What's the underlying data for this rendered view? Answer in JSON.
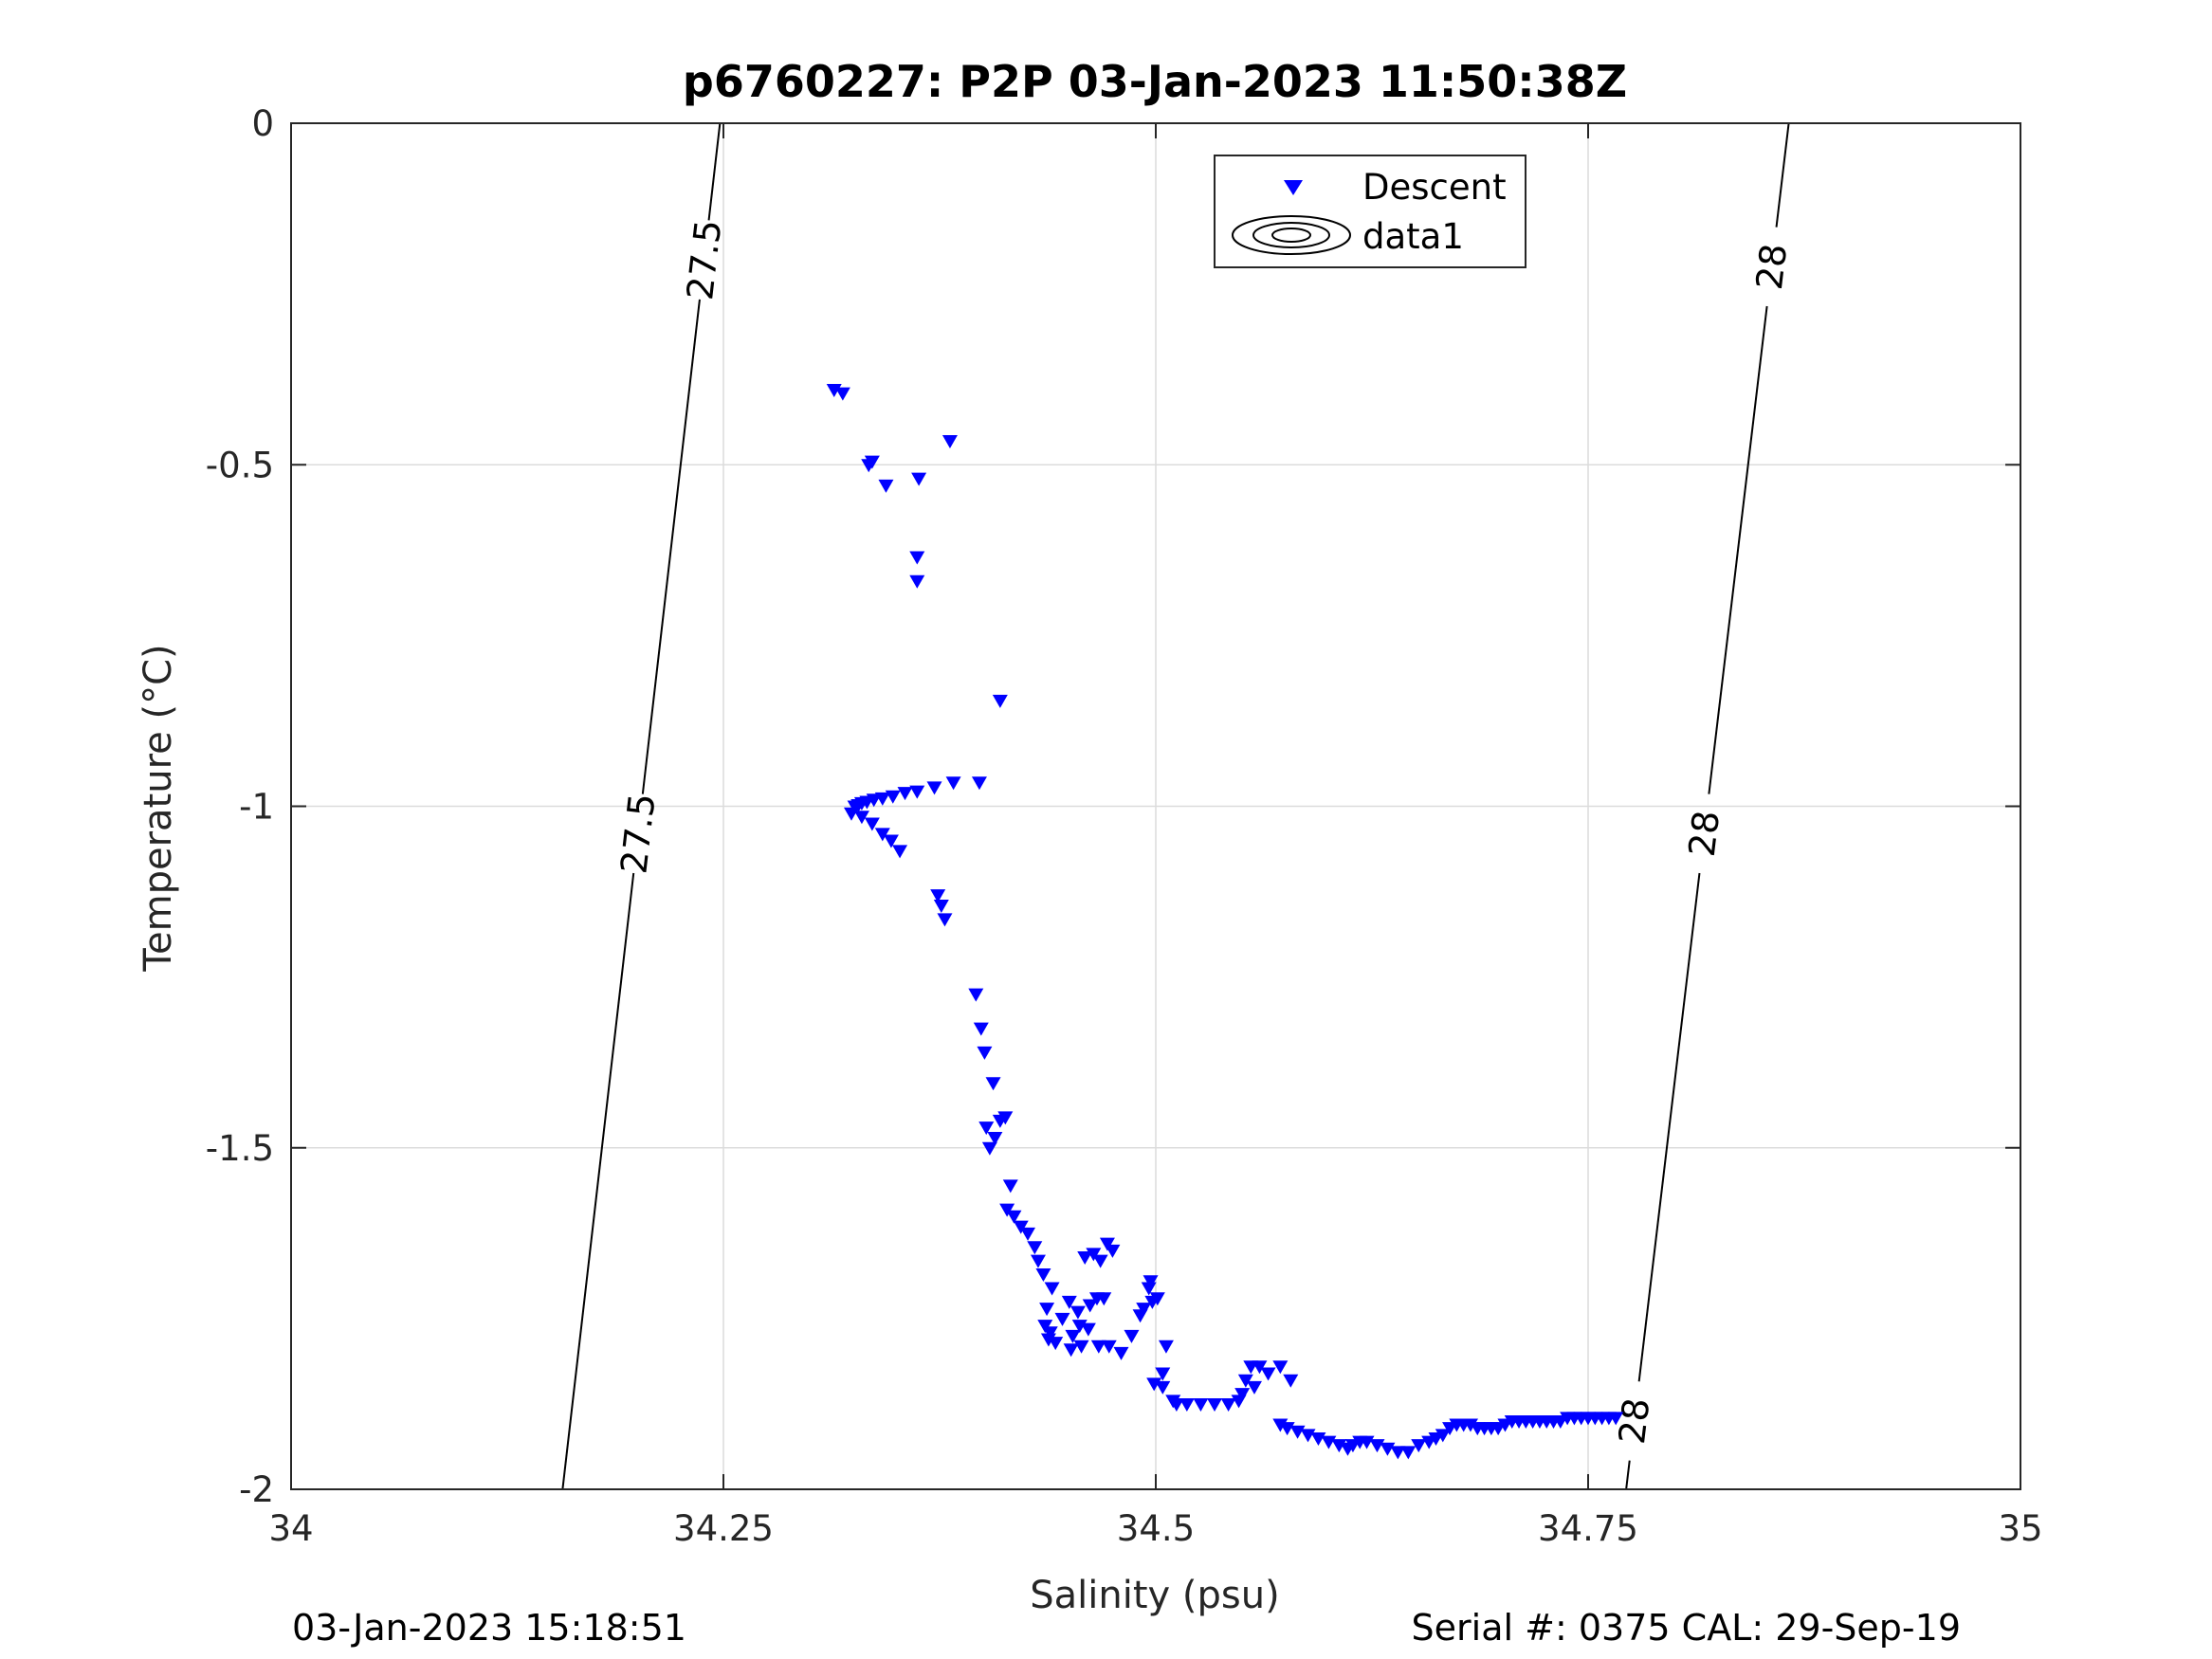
{
  "chart_data": {
    "type": "scatter",
    "title": "p6760227: P2P 03-Jan-2023 11:50:38Z",
    "xlabel": "Salinity (psu)",
    "ylabel": "Temperature (°C)",
    "xlim": [
      34,
      35
    ],
    "ylim": [
      -2,
      0
    ],
    "x_ticks": [
      "34",
      "34.25",
      "34.5",
      "34.75",
      "35"
    ],
    "y_ticks": [
      "0",
      "-0.5",
      "-1",
      "-1.5",
      "-2"
    ],
    "grid": true,
    "legend_position": "top-center",
    "legend": [
      "Descent",
      "data1"
    ],
    "footer_left": "03-Jan-2023 15:18:51",
    "footer_right": "Serial #: 0375  CAL: 29-Sep-19",
    "colors": {
      "series": "#0000ff",
      "contour": "#000000",
      "grid": "#dcdcdc"
    },
    "contours": [
      {
        "level": "27.5",
        "x_at_top": 34.248,
        "x_at_bottom": 34.157,
        "label_y": [
          -0.2,
          -1.04
        ]
      },
      {
        "level": "28",
        "x_at_top": 34.866,
        "x_at_bottom": 34.772,
        "label_y": [
          -0.21,
          -1.04,
          -1.9
        ]
      }
    ],
    "series": [
      {
        "name": "Descent",
        "marker": "triangle-down",
        "x": [
          34.314,
          34.319,
          34.334,
          34.336,
          34.344,
          34.363,
          34.381,
          34.362,
          34.362,
          34.41,
          34.398,
          34.324,
          34.326,
          34.328,
          34.33,
          34.333,
          34.337,
          34.342,
          34.348,
          34.355,
          34.362,
          34.372,
          34.383,
          34.33,
          34.336,
          34.342,
          34.347,
          34.352,
          34.374,
          34.376,
          34.378,
          34.396,
          34.399,
          34.401,
          34.406,
          34.413,
          34.402,
          34.404,
          34.407,
          34.41,
          34.416,
          34.414,
          34.418,
          34.422,
          34.426,
          34.43,
          34.432,
          34.435,
          34.44,
          34.437,
          34.439,
          34.436,
          34.438,
          34.442,
          34.446,
          34.45,
          34.455,
          34.461,
          34.467,
          34.473,
          34.48,
          34.486,
          34.491,
          34.459,
          34.464,
          34.468,
          34.472,
          34.475,
          34.47,
          34.466,
          34.462,
          34.456,
          34.452,
          34.457,
          34.451,
          34.496,
          34.498,
          34.493,
          34.497,
          34.501,
          34.506,
          34.504,
          34.499,
          34.504,
          34.51,
          34.512,
          34.518,
          34.526,
          34.534,
          34.542,
          34.548,
          34.55,
          34.552,
          34.555,
          34.56,
          34.565,
          34.557,
          34.572,
          34.578,
          34.572,
          34.576,
          34.582,
          34.588,
          34.594,
          34.6,
          34.606,
          34.611,
          34.614,
          34.618,
          34.622,
          34.628,
          34.634,
          34.64,
          34.646,
          34.652,
          34.658,
          34.662,
          34.666,
          34.67,
          34.674,
          34.678,
          34.682,
          34.686,
          34.69,
          34.694,
          34.698,
          34.702,
          34.706,
          34.71,
          34.714,
          34.718,
          34.722,
          34.726,
          34.73,
          34.734,
          34.738,
          34.742,
          34.746,
          34.75,
          34.754,
          34.758,
          34.762,
          34.766
        ],
        "y": [
          -0.39,
          -0.395,
          -0.5,
          -0.495,
          -0.53,
          -0.52,
          -0.465,
          -0.635,
          -0.67,
          -0.845,
          -0.965,
          -1.01,
          -1.0,
          -0.998,
          -0.995,
          -0.993,
          -0.99,
          -0.988,
          -0.985,
          -0.98,
          -0.978,
          -0.972,
          -0.965,
          -1.015,
          -1.025,
          -1.04,
          -1.05,
          -1.065,
          -1.13,
          -1.145,
          -1.165,
          -1.275,
          -1.325,
          -1.36,
          -1.405,
          -1.455,
          -1.47,
          -1.5,
          -1.485,
          -1.46,
          -1.555,
          -1.59,
          -1.6,
          -1.615,
          -1.625,
          -1.645,
          -1.665,
          -1.685,
          -1.705,
          -1.735,
          -1.77,
          -1.76,
          -1.78,
          -1.785,
          -1.75,
          -1.725,
          -1.74,
          -1.765,
          -1.79,
          -1.79,
          -1.8,
          -1.775,
          -1.745,
          -1.66,
          -1.655,
          -1.665,
          -1.64,
          -1.65,
          -1.72,
          -1.72,
          -1.73,
          -1.76,
          -1.775,
          -1.79,
          -1.795,
          -1.705,
          -1.725,
          -1.735,
          -1.695,
          -1.72,
          -1.79,
          -1.83,
          -1.845,
          -1.85,
          -1.87,
          -1.875,
          -1.875,
          -1.875,
          -1.875,
          -1.875,
          -1.87,
          -1.86,
          -1.84,
          -1.82,
          -1.82,
          -1.83,
          -1.85,
          -1.82,
          -1.84,
          -1.905,
          -1.91,
          -1.915,
          -1.92,
          -1.925,
          -1.93,
          -1.935,
          -1.94,
          -1.935,
          -1.93,
          -1.93,
          -1.935,
          -1.94,
          -1.945,
          -1.945,
          -1.935,
          -1.93,
          -1.925,
          -1.92,
          -1.91,
          -1.905,
          -1.905,
          -1.905,
          -1.91,
          -1.91,
          -1.91,
          -1.91,
          -1.905,
          -1.9,
          -1.9,
          -1.9,
          -1.9,
          -1.9,
          -1.9,
          -1.9,
          -1.9,
          -1.895,
          -1.895,
          -1.895,
          -1.895,
          -1.895,
          -1.895,
          -1.895,
          -1.895
        ]
      }
    ]
  }
}
